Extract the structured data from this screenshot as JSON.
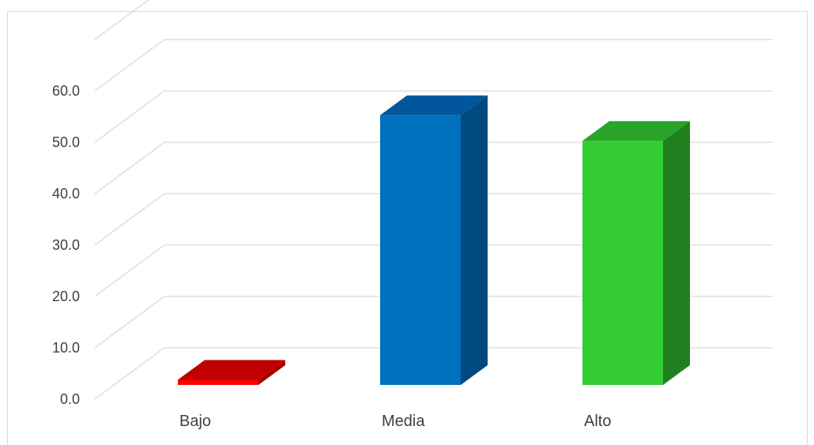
{
  "chart_data": {
    "type": "bar",
    "style": "3d-column",
    "categories": [
      "Bajo",
      "Media",
      "Alto"
    ],
    "values": [
      1.0,
      52.5,
      47.5
    ],
    "ylim": [
      0,
      70
    ],
    "yticks": [
      "0.0",
      "10.0",
      "20.0",
      "30.0",
      "40.0",
      "50.0",
      "60.0"
    ],
    "grid": true,
    "legend": "none",
    "colors": {
      "Bajo": {
        "front": "#ff0000",
        "side": "#a80000",
        "top": "#c00000"
      },
      "Media": {
        "front": "#0070c0",
        "side": "#004a80",
        "top": "#00569a"
      },
      "Alto": {
        "front": "#33cc33",
        "side": "#208020",
        "top": "#28a428"
      }
    },
    "gridColor": "#d9d9d9"
  }
}
